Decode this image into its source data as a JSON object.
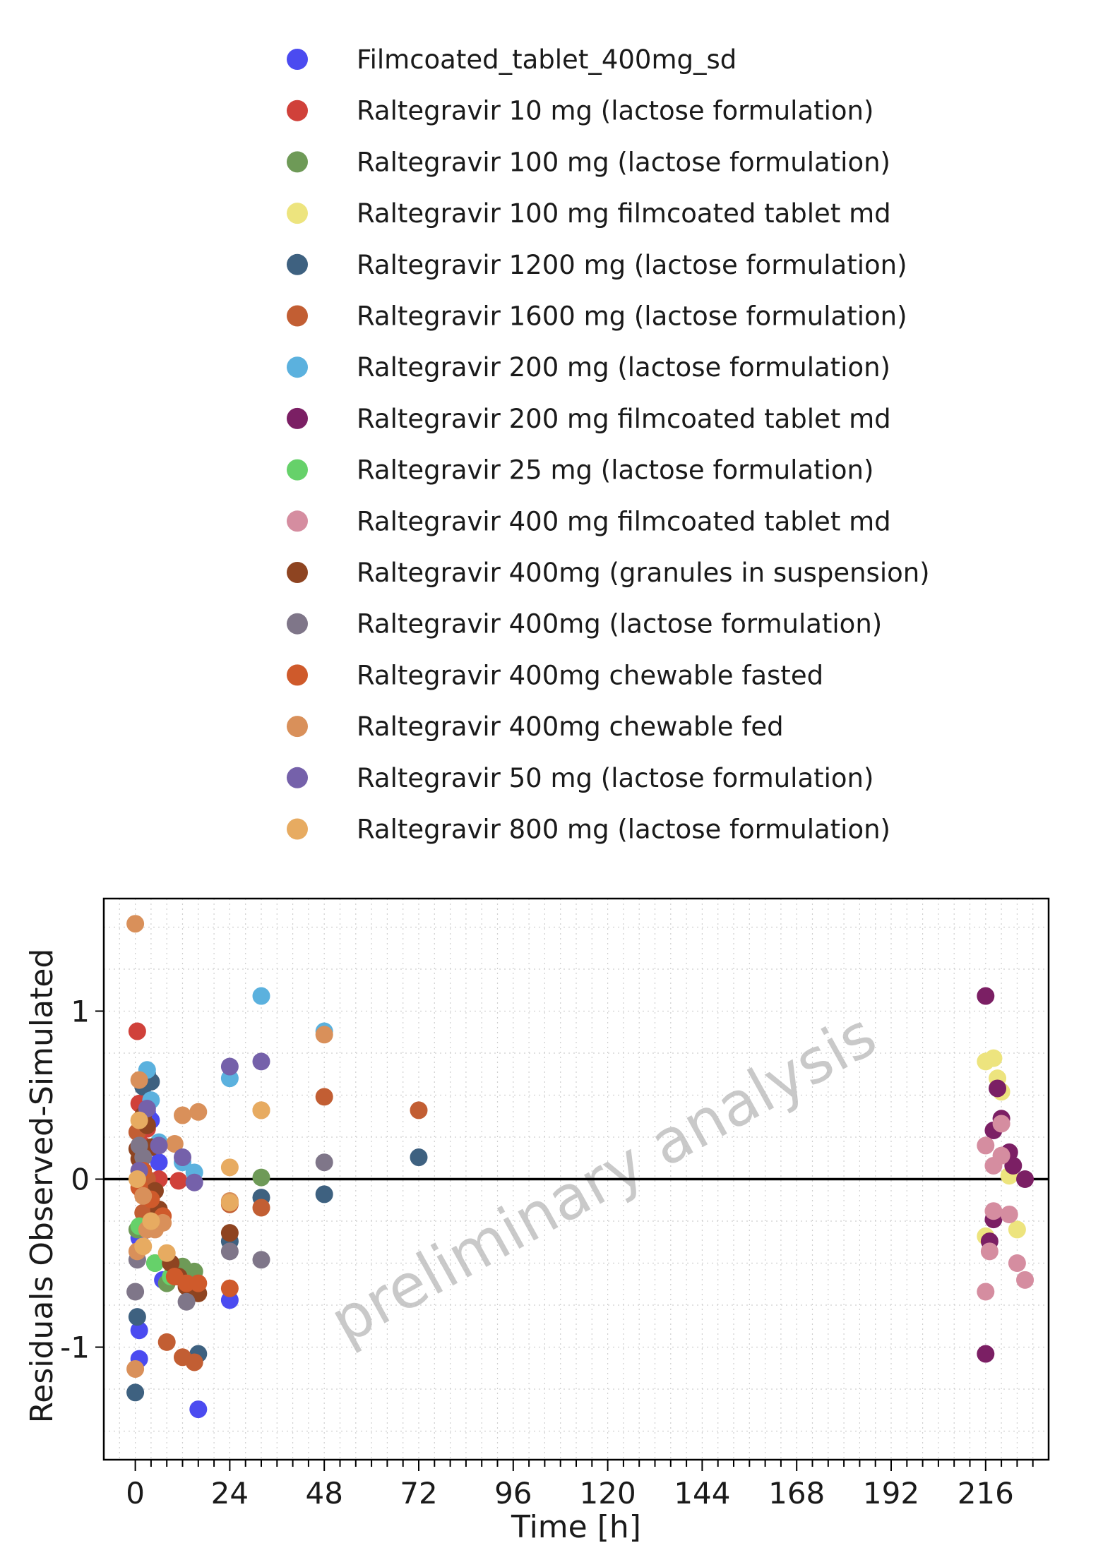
{
  "chart_data": {
    "type": "scatter",
    "xlabel": "Time [h]",
    "ylabel": "Residuals Observed-Simulated",
    "watermark": "preliminary analysis",
    "xlim": [
      -8,
      232
    ],
    "ylim": [
      -1.67,
      1.67
    ],
    "x_ticks": [
      0,
      24,
      48,
      72,
      96,
      120,
      144,
      168,
      192,
      216
    ],
    "x_tick_labels": [
      "0",
      "24",
      "48",
      "72",
      "96",
      "120",
      "144",
      "168",
      "192",
      "216"
    ],
    "y_ticks": [
      -1,
      0,
      1
    ],
    "y_tick_labels": [
      "-1",
      "0",
      "1"
    ],
    "reference_line_y": 0,
    "grid": true,
    "legend_position": "top",
    "series": [
      {
        "name": "Filmcoated_tablet_400mg_sd",
        "color": "#4B4BF0",
        "points": [
          [
            1,
            -1.07
          ],
          [
            1,
            -0.9
          ],
          [
            1,
            -0.35
          ],
          [
            2,
            -0.3
          ],
          [
            3,
            0.4
          ],
          [
            4,
            0.35
          ],
          [
            6,
            0.1
          ],
          [
            7,
            -0.6
          ],
          [
            16,
            -1.37
          ],
          [
            24,
            -0.72
          ]
        ]
      },
      {
        "name": "Raltegravir 10 mg (lactose formulation)",
        "color": "#D0413A",
        "points": [
          [
            0.5,
            0.88
          ],
          [
            1,
            0.45
          ],
          [
            2,
            0.2
          ],
          [
            3,
            0.3
          ],
          [
            6,
            0.0
          ],
          [
            11,
            -0.01
          ]
        ]
      },
      {
        "name": "Raltegravir 100 mg (lactose formulation)",
        "color": "#6E9A57",
        "points": [
          [
            0.5,
            -0.3
          ],
          [
            5,
            -0.5
          ],
          [
            8,
            -0.62
          ],
          [
            12,
            -0.52
          ],
          [
            15,
            -0.55
          ],
          [
            32,
            0.01
          ]
        ]
      },
      {
        "name": "Raltegravir 100 mg filmcoated tablet md",
        "color": "#EDE47E",
        "points": [
          [
            216,
            0.7
          ],
          [
            218,
            0.72
          ],
          [
            219,
            0.6
          ],
          [
            220,
            0.52
          ],
          [
            222,
            0.02
          ],
          [
            224,
            -0.3
          ],
          [
            216,
            -0.34
          ]
        ]
      },
      {
        "name": "Raltegravir 1200 mg (lactose formulation)",
        "color": "#3E6180",
        "points": [
          [
            0,
            -1.27
          ],
          [
            0.5,
            -0.82
          ],
          [
            2,
            0.55
          ],
          [
            3,
            0.63
          ],
          [
            4,
            0.58
          ],
          [
            16,
            -1.04
          ],
          [
            24,
            -0.37
          ],
          [
            32,
            -0.11
          ],
          [
            48,
            -0.09
          ],
          [
            72,
            0.13
          ]
        ]
      },
      {
        "name": "Raltegravir 1600 mg (lactose formulation)",
        "color": "#C25E33",
        "points": [
          [
            0.5,
            0.28
          ],
          [
            1,
            0.05
          ],
          [
            2,
            -0.2
          ],
          [
            3,
            0.0
          ],
          [
            8,
            -0.97
          ],
          [
            12,
            -1.06
          ],
          [
            15,
            -1.09
          ],
          [
            24,
            -0.15
          ],
          [
            32,
            -0.17
          ],
          [
            48,
            0.49
          ],
          [
            72,
            0.41
          ]
        ]
      },
      {
        "name": "Raltegravir 200 mg (lactose formulation)",
        "color": "#5BB1DE",
        "points": [
          [
            3,
            0.65
          ],
          [
            4,
            0.47
          ],
          [
            6,
            0.22
          ],
          [
            12,
            0.1
          ],
          [
            15,
            0.04
          ],
          [
            24,
            0.6
          ],
          [
            32,
            1.09
          ],
          [
            48,
            0.88
          ]
        ]
      },
      {
        "name": "Raltegravir 200 mg filmcoated tablet md",
        "color": "#7B1F64",
        "points": [
          [
            216,
            1.09
          ],
          [
            216,
            -1.04
          ],
          [
            217,
            -0.37
          ],
          [
            218,
            -0.24
          ],
          [
            218,
            0.29
          ],
          [
            219,
            0.54
          ],
          [
            220,
            0.36
          ],
          [
            222,
            0.16
          ],
          [
            223,
            0.08
          ],
          [
            226,
            0.0
          ]
        ]
      },
      {
        "name": "Raltegravir 25 mg (lactose formulation)",
        "color": "#66D16A",
        "points": [
          [
            1,
            -0.28
          ],
          [
            5,
            -0.5
          ],
          [
            9,
            -0.58
          ]
        ]
      },
      {
        "name": "Raltegravir 400 mg filmcoated tablet md",
        "color": "#D58DA0",
        "points": [
          [
            216,
            0.2
          ],
          [
            216,
            -0.67
          ],
          [
            217,
            -0.43
          ],
          [
            218,
            -0.19
          ],
          [
            218,
            0.08
          ],
          [
            220,
            0.14
          ],
          [
            220,
            0.33
          ],
          [
            222,
            -0.21
          ],
          [
            224,
            -0.5
          ],
          [
            226,
            -0.6
          ]
        ]
      },
      {
        "name": "Raltegravir 400mg (granules in suspension)",
        "color": "#8E4421",
        "points": [
          [
            0.5,
            0.18
          ],
          [
            1,
            0.12
          ],
          [
            2,
            0.38
          ],
          [
            3,
            0.32
          ],
          [
            4,
            0.19
          ],
          [
            5,
            -0.07
          ],
          [
            6,
            -0.18
          ],
          [
            9,
            -0.5
          ],
          [
            11,
            -0.58
          ],
          [
            13,
            -0.64
          ],
          [
            16,
            -0.68
          ],
          [
            24,
            -0.32
          ]
        ]
      },
      {
        "name": "Raltegravir 400mg (lactose formulation)",
        "color": "#7F7689",
        "points": [
          [
            0,
            -0.67
          ],
          [
            0.5,
            -0.48
          ],
          [
            1,
            0.2
          ],
          [
            2,
            0.13
          ],
          [
            13,
            -0.73
          ],
          [
            24,
            -0.43
          ],
          [
            32,
            -0.48
          ],
          [
            48,
            0.1
          ]
        ]
      },
      {
        "name": "Raltegravir 400mg chewable fasted",
        "color": "#CF5A2B",
        "points": [
          [
            1,
            -0.05
          ],
          [
            2,
            0.05
          ],
          [
            4,
            -0.12
          ],
          [
            7,
            -0.22
          ],
          [
            10,
            -0.58
          ],
          [
            13,
            -0.62
          ],
          [
            16,
            -0.62
          ],
          [
            24,
            -0.65
          ]
        ]
      },
      {
        "name": "Raltegravir 400mg chewable fed",
        "color": "#D9905A",
        "points": [
          [
            0,
            1.52
          ],
          [
            0,
            -1.13
          ],
          [
            0.5,
            -0.43
          ],
          [
            1,
            0.59
          ],
          [
            2,
            -0.1
          ],
          [
            3,
            -0.3
          ],
          [
            5,
            -0.3
          ],
          [
            7,
            -0.26
          ],
          [
            10,
            0.21
          ],
          [
            12,
            0.38
          ],
          [
            16,
            0.4
          ],
          [
            24,
            -0.13
          ],
          [
            32,
            0.41
          ],
          [
            48,
            0.86
          ]
        ]
      },
      {
        "name": "Raltegravir 50 mg (lactose formulation)",
        "color": "#7561AA",
        "points": [
          [
            1,
            0.05
          ],
          [
            3,
            0.42
          ],
          [
            6,
            0.2
          ],
          [
            12,
            0.13
          ],
          [
            15,
            -0.02
          ],
          [
            24,
            0.67
          ],
          [
            32,
            0.7
          ]
        ]
      },
      {
        "name": "Raltegravir 800 mg (lactose formulation)",
        "color": "#E7AB61",
        "points": [
          [
            0.5,
            0.0
          ],
          [
            1,
            0.35
          ],
          [
            2,
            -0.4
          ],
          [
            4,
            -0.25
          ],
          [
            8,
            -0.44
          ],
          [
            24,
            0.07
          ],
          [
            24,
            -0.14
          ],
          [
            32,
            0.41
          ]
        ]
      }
    ]
  }
}
